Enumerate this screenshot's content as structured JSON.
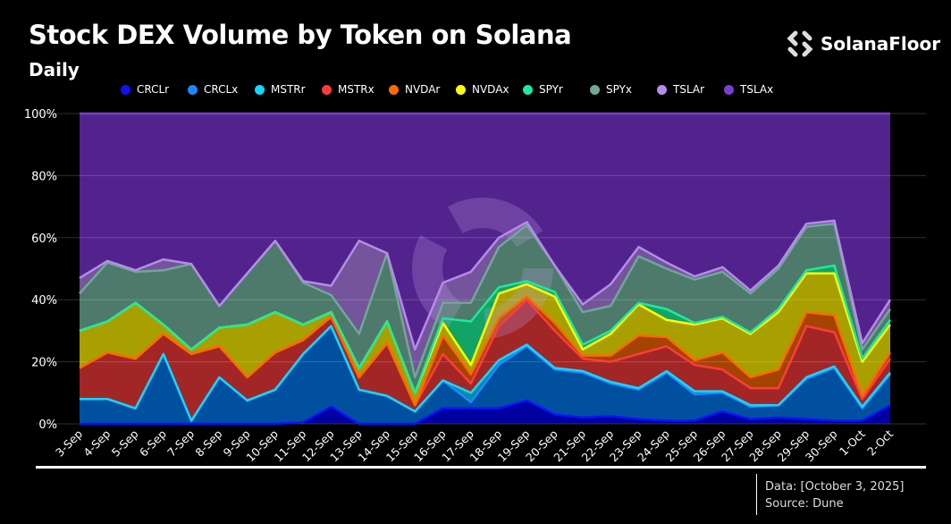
{
  "header": {
    "title": "Stock DEX Volume by Token on Solana",
    "subtitle": "Daily",
    "brand": "SolanaFloor"
  },
  "footer": {
    "data_note": "Data: [October 3, 2025]",
    "source": "Source: Dune"
  },
  "chart_data": {
    "type": "area",
    "stacked": true,
    "normalized": true,
    "title": "Stock DEX Volume by Token on Solana",
    "subtitle": "Daily",
    "xlabel": "",
    "ylabel": "",
    "ylim": [
      0,
      100
    ],
    "yticks": [
      "0%",
      "20%",
      "40%",
      "60%",
      "80%",
      "100%"
    ],
    "grid": true,
    "legend_position": "top",
    "categories": [
      "3-Sep",
      "4-Sep",
      "5-Sep",
      "6-Sep",
      "7-Sep",
      "8-Sep",
      "9-Sep",
      "10-Sep",
      "11-Sep",
      "12-Sep",
      "13-Sep",
      "14-Sep",
      "15-Sep",
      "16-Sep",
      "17-Sep",
      "18-Sep",
      "19-Sep",
      "20-Sep",
      "21-Sep",
      "22-Sep",
      "23-Sep",
      "24-Sep",
      "25-Sep",
      "26-Sep",
      "27-Sep",
      "28-Sep",
      "29-Sep",
      "30-Sep",
      "1-Oct",
      "2-Oct"
    ],
    "series": [
      {
        "name": "CRCLr",
        "line": "#1010ff",
        "fill": "#0000a0",
        "values": [
          0,
          0,
          0,
          0,
          0,
          0,
          0,
          0,
          0.5,
          5.5,
          0,
          0,
          0,
          5,
          5,
          5,
          7.5,
          3,
          2,
          2.5,
          1.5,
          1,
          1,
          4,
          1.5,
          2,
          1.5,
          1,
          1,
          6
        ]
      },
      {
        "name": "CRCLx",
        "line": "#1e88ff",
        "fill": "#0050a0",
        "values": [
          8,
          8,
          5,
          22.5,
          1,
          15,
          7.5,
          11,
          22,
          26,
          11,
          9,
          4,
          9,
          2,
          14,
          17.5,
          14.5,
          14.5,
          10.5,
          9.5,
          15.5,
          8.5,
          6,
          4,
          4,
          13,
          17,
          4,
          10
        ]
      },
      {
        "name": "MSTRr",
        "line": "#12d8ff",
        "fill": "#0888a8",
        "values": [
          0,
          0,
          0,
          0,
          0,
          0,
          0,
          0,
          0,
          0,
          0,
          0,
          0,
          0,
          3,
          1.5,
          0.5,
          0.5,
          0.5,
          0.5,
          0.5,
          0.5,
          1,
          0.5,
          0.5,
          0,
          0.5,
          0.5,
          0.5,
          0.5
        ]
      },
      {
        "name": "MSTRx",
        "line": "#ff3b3b",
        "fill": "#a22626",
        "values": [
          10,
          15,
          16,
          6.5,
          21.5,
          10,
          7.5,
          12,
          4.5,
          3,
          4,
          17,
          2,
          8.5,
          3,
          11,
          14.5,
          12,
          4,
          6.5,
          11,
          8,
          8.5,
          7,
          5.5,
          5.5,
          16.5,
          11,
          2.5,
          4.5
        ]
      },
      {
        "name": "NVDAr",
        "line": "#ff6a00",
        "fill": "#a44400",
        "values": [
          0,
          0,
          0,
          0,
          0,
          0,
          0,
          0,
          0,
          0,
          0,
          0,
          0,
          6,
          3,
          2.5,
          1,
          2.5,
          1,
          2,
          6,
          3,
          1.5,
          5.5,
          3.5,
          6,
          4.5,
          5.5,
          1,
          2
        ]
      },
      {
        "name": "NVDAx",
        "line": "#ffff00",
        "fill": "#a8a000",
        "values": [
          12,
          10,
          18,
          3,
          1.5,
          6,
          17,
          13,
          5,
          1.5,
          3,
          7,
          4,
          4,
          3,
          8,
          4,
          8.5,
          2,
          7,
          10,
          5.5,
          11.5,
          11,
          14,
          18.5,
          12.5,
          13.5,
          11,
          9
        ]
      },
      {
        "name": "SPYr",
        "line": "#1de9a0",
        "fill": "#12a466",
        "values": [
          0,
          0,
          0,
          0,
          0,
          0,
          0,
          0,
          0,
          0,
          0,
          0,
          0,
          1.5,
          14,
          2,
          1,
          1.5,
          1.5,
          1,
          0.5,
          3.5,
          0.5,
          0.5,
          0.5,
          1,
          1,
          2.5,
          1,
          1.5
        ]
      },
      {
        "name": "SPYx",
        "line": "#6fa898",
        "fill": "#4d7a6a",
        "values": [
          12,
          19,
          10,
          17.5,
          27.5,
          7,
          16.5,
          23,
          13.5,
          5.5,
          11,
          22,
          5,
          5,
          6,
          13,
          18,
          8.5,
          10.5,
          8,
          15,
          13,
          14,
          14.5,
          12.5,
          13,
          14,
          13.5,
          3,
          3.5
        ]
      },
      {
        "name": "TSLAr",
        "line": "#b48ce8",
        "fill": "#74549a",
        "values": [
          5,
          0.5,
          0.5,
          3.5,
          0,
          0,
          0,
          0,
          0.5,
          3,
          30,
          0,
          9,
          6.5,
          10,
          3,
          1,
          0,
          2.5,
          7,
          3,
          2,
          1,
          1.5,
          1,
          1,
          1,
          1,
          2,
          3
        ]
      },
      {
        "name": "TSLAx",
        "line": "#7b3fd0",
        "fill": "#52238c",
        "values": [
          53,
          47.5,
          50.5,
          47,
          48.5,
          62,
          51.5,
          41,
          54,
          55.5,
          41,
          45,
          76,
          54.5,
          51,
          40,
          35,
          49,
          61.5,
          55,
          43,
          48,
          52.5,
          49.5,
          57,
          49,
          35.5,
          34.5,
          74,
          60
        ]
      }
    ]
  }
}
